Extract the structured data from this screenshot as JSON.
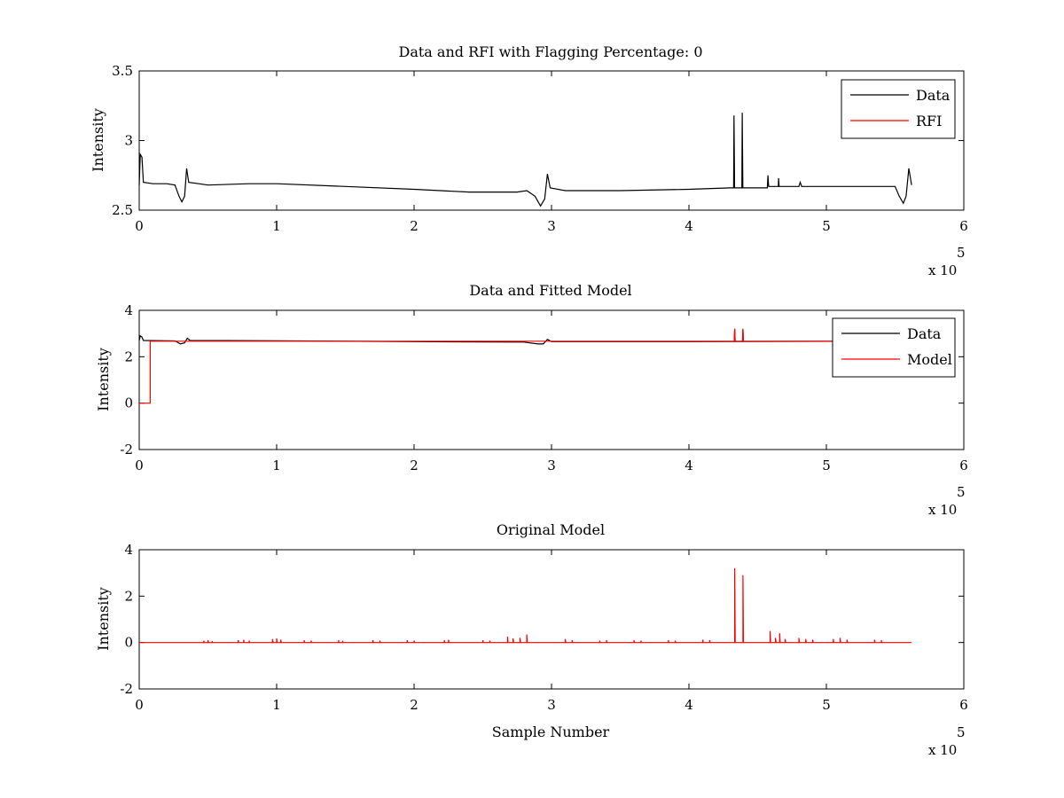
{
  "figure": {
    "background": "#ffffff"
  },
  "chart_data": [
    {
      "type": "line",
      "title": "Data and RFI with Flagging Percentage: 0",
      "xlabel": "",
      "ylabel": "Intensity",
      "xlim": [
        0,
        6
      ],
      "ylim": [
        2.5,
        3.5
      ],
      "x_ticks": [
        "0",
        "1",
        "2",
        "3",
        "4",
        "5",
        "6"
      ],
      "y_ticks": [
        "2.5",
        "3",
        "3.5"
      ],
      "x_multiplier": {
        "prefix": "x 10",
        "exponent": "5"
      },
      "legend": {
        "placement": "top-right",
        "entries": [
          "Data",
          "RFI"
        ]
      },
      "grid": false,
      "series": [
        {
          "name": "Data",
          "color": "#000000",
          "points": [
            [
              0,
              2.68
            ],
            [
              0.008,
              2.9
            ],
            [
              0.02,
              2.88
            ],
            [
              0.03,
              2.7
            ],
            [
              0.1,
              2.69
            ],
            [
              0.2,
              2.69
            ],
            [
              0.26,
              2.68
            ],
            [
              0.29,
              2.6
            ],
            [
              0.31,
              2.56
            ],
            [
              0.33,
              2.6
            ],
            [
              0.345,
              2.8
            ],
            [
              0.36,
              2.7
            ],
            [
              0.5,
              2.68
            ],
            [
              0.8,
              2.69
            ],
            [
              1.0,
              2.69
            ],
            [
              1.5,
              2.67
            ],
            [
              2.0,
              2.65
            ],
            [
              2.4,
              2.63
            ],
            [
              2.75,
              2.63
            ],
            [
              2.82,
              2.64
            ],
            [
              2.88,
              2.6
            ],
            [
              2.92,
              2.53
            ],
            [
              2.95,
              2.58
            ],
            [
              2.97,
              2.76
            ],
            [
              2.99,
              2.66
            ],
            [
              3.1,
              2.64
            ],
            [
              3.5,
              2.64
            ],
            [
              4.0,
              2.65
            ],
            [
              4.3,
              2.66
            ],
            [
              4.325,
              2.66
            ],
            [
              4.328,
              3.18
            ],
            [
              4.332,
              2.66
            ],
            [
              4.385,
              2.66
            ],
            [
              4.388,
              3.2
            ],
            [
              4.392,
              2.66
            ],
            [
              4.57,
              2.66
            ],
            [
              4.575,
              2.75
            ],
            [
              4.58,
              2.67
            ],
            [
              4.65,
              2.67
            ],
            [
              4.652,
              2.73
            ],
            [
              4.656,
              2.67
            ],
            [
              4.8,
              2.67
            ],
            [
              4.81,
              2.7
            ],
            [
              4.82,
              2.67
            ],
            [
              5.0,
              2.67
            ],
            [
              5.3,
              2.67
            ],
            [
              5.5,
              2.67
            ],
            [
              5.53,
              2.6
            ],
            [
              5.56,
              2.55
            ],
            [
              5.58,
              2.6
            ],
            [
              5.6,
              2.8
            ],
            [
              5.62,
              2.68
            ]
          ]
        },
        {
          "name": "RFI",
          "color": "#ff0000",
          "points": []
        }
      ]
    },
    {
      "type": "line",
      "title": "Data and Fitted Model",
      "xlabel": "",
      "ylabel": "Intensity",
      "xlim": [
        0,
        6
      ],
      "ylim": [
        -2,
        4
      ],
      "x_ticks": [
        "0",
        "1",
        "2",
        "3",
        "4",
        "5",
        "6"
      ],
      "y_ticks": [
        "-2",
        "0",
        "2",
        "4"
      ],
      "x_multiplier": {
        "prefix": "x 10",
        "exponent": "5"
      },
      "legend": {
        "placement": "top-right",
        "entries": [
          "Data",
          "Model"
        ]
      },
      "grid": false,
      "series": [
        {
          "name": "Data",
          "color": "#000000",
          "points": [
            [
              0,
              2.7
            ],
            [
              0.008,
              2.9
            ],
            [
              0.02,
              2.85
            ],
            [
              0.03,
              2.7
            ],
            [
              0.26,
              2.68
            ],
            [
              0.3,
              2.55
            ],
            [
              0.33,
              2.6
            ],
            [
              0.35,
              2.8
            ],
            [
              0.37,
              2.7
            ],
            [
              1.0,
              2.69
            ],
            [
              2.0,
              2.65
            ],
            [
              2.8,
              2.63
            ],
            [
              2.9,
              2.55
            ],
            [
              2.94,
              2.55
            ],
            [
              2.97,
              2.75
            ],
            [
              3.0,
              2.65
            ],
            [
              4.0,
              2.65
            ],
            [
              4.33,
              2.66
            ],
            [
              4.333,
              3.2
            ],
            [
              4.336,
              2.66
            ],
            [
              4.39,
              2.66
            ],
            [
              4.393,
              3.2
            ],
            [
              4.396,
              2.66
            ],
            [
              5.62,
              2.67
            ]
          ]
        },
        {
          "name": "Model",
          "color": "#ff0000",
          "points": [
            [
              0,
              0
            ],
            [
              0.08,
              0
            ],
            [
              0.08,
              2.67
            ],
            [
              4.33,
              2.67
            ],
            [
              4.333,
              3.2
            ],
            [
              4.336,
              2.67
            ],
            [
              4.39,
              2.67
            ],
            [
              4.393,
              3.2
            ],
            [
              4.396,
              2.67
            ],
            [
              5.62,
              2.67
            ]
          ]
        }
      ]
    },
    {
      "type": "line",
      "title": "Original Model",
      "xlabel": "Sample Number",
      "ylabel": "Intensity",
      "xlim": [
        0,
        6
      ],
      "ylim": [
        -2,
        4
      ],
      "x_ticks": [
        "0",
        "1",
        "2",
        "3",
        "4",
        "5",
        "6"
      ],
      "y_ticks": [
        "-2",
        "0",
        "2",
        "4"
      ],
      "x_multiplier": {
        "prefix": "x 10",
        "exponent": "5"
      },
      "legend": null,
      "grid": false,
      "baseline": 0,
      "end_x": 5.62,
      "series": [
        {
          "name": "",
          "color": "#ff0000",
          "spikes": [
            [
              0.47,
              0.08
            ],
            [
              0.5,
              0.1
            ],
            [
              0.53,
              0.06
            ],
            [
              0.72,
              0.1
            ],
            [
              0.76,
              0.12
            ],
            [
              0.8,
              0.08
            ],
            [
              0.97,
              0.15
            ],
            [
              1.0,
              0.18
            ],
            [
              1.03,
              0.12
            ],
            [
              1.2,
              0.1
            ],
            [
              1.25,
              0.08
            ],
            [
              1.45,
              0.1
            ],
            [
              1.48,
              0.07
            ],
            [
              1.7,
              0.1
            ],
            [
              1.75,
              0.08
            ],
            [
              1.95,
              0.1
            ],
            [
              2.0,
              0.08
            ],
            [
              2.22,
              0.1
            ],
            [
              2.25,
              0.12
            ],
            [
              2.5,
              0.1
            ],
            [
              2.55,
              0.08
            ],
            [
              2.68,
              0.25
            ],
            [
              2.72,
              0.18
            ],
            [
              2.77,
              0.2
            ],
            [
              2.82,
              0.35
            ],
            [
              3.1,
              0.15
            ],
            [
              3.15,
              0.1
            ],
            [
              3.35,
              0.08
            ],
            [
              3.4,
              0.1
            ],
            [
              3.6,
              0.1
            ],
            [
              3.65,
              0.08
            ],
            [
              3.85,
              0.1
            ],
            [
              3.9,
              0.08
            ],
            [
              4.1,
              0.12
            ],
            [
              4.15,
              0.1
            ],
            [
              4.333,
              3.2
            ],
            [
              4.393,
              2.9
            ],
            [
              4.59,
              0.5
            ],
            [
              4.63,
              0.2
            ],
            [
              4.66,
              0.4
            ],
            [
              4.7,
              0.15
            ],
            [
              4.8,
              0.2
            ],
            [
              4.85,
              0.15
            ],
            [
              4.9,
              0.12
            ],
            [
              5.05,
              0.15
            ],
            [
              5.1,
              0.2
            ],
            [
              5.15,
              0.12
            ],
            [
              5.35,
              0.12
            ],
            [
              5.4,
              0.1
            ]
          ]
        }
      ]
    }
  ]
}
